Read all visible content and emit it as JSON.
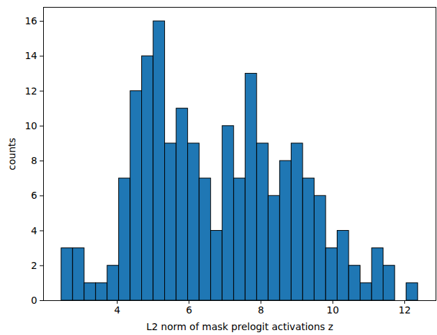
{
  "chart_data": {
    "type": "histogram",
    "xlabel": "L2 norm of mask prelogit activations z",
    "ylabel": "counts",
    "bins": [
      2.45,
      2.77,
      3.09,
      3.41,
      3.73,
      4.05,
      4.37,
      4.69,
      5.01,
      5.33,
      5.65,
      5.97,
      6.29,
      6.61,
      6.93,
      7.25,
      7.57,
      7.89,
      8.21,
      8.53,
      8.85,
      9.17,
      9.49,
      9.81,
      10.13,
      10.45,
      10.77,
      11.09,
      11.41,
      11.73,
      12.05,
      12.37
    ],
    "values": [
      3,
      3,
      1,
      1,
      2,
      7,
      12,
      14,
      16,
      9,
      11,
      9,
      7,
      4,
      10,
      7,
      13,
      9,
      6,
      8,
      9,
      7,
      6,
      3,
      4,
      2,
      1,
      3,
      2,
      0,
      1
    ],
    "color": "#1f77b4",
    "xlim": [
      1.95,
      12.87
    ],
    "xticks": [
      4,
      6,
      8,
      10,
      12
    ],
    "ylim": [
      0,
      16.8
    ],
    "yticks": [
      0,
      2,
      4,
      6,
      8,
      10,
      12,
      14,
      16
    ],
    "grid": false
  }
}
